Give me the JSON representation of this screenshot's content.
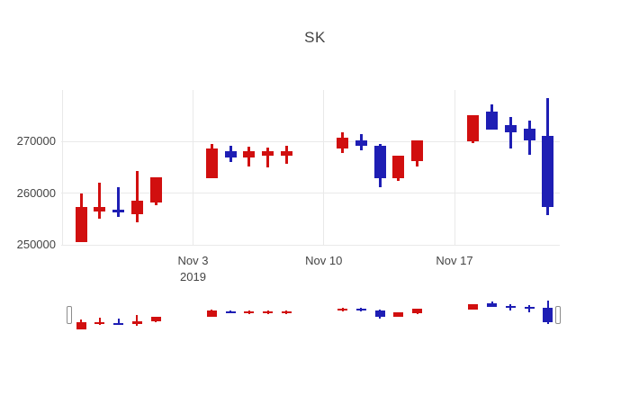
{
  "title": "SK",
  "colors": {
    "up": "#d10f0f",
    "down": "#1e1eb4",
    "grid": "#e9e9e9",
    "text": "#444444",
    "background": "#ffffff",
    "handle_border": "#8c8c8c"
  },
  "y_axis": {
    "tick_labels": [
      "250000",
      "260000",
      "270000"
    ],
    "tick_values": [
      250000,
      260000,
      270000
    ]
  },
  "x_axis": {
    "ticks": [
      {
        "label": "Nov 3",
        "sublabel": "2019",
        "date": "2019-11-03"
      },
      {
        "label": "Nov 10",
        "sublabel": "",
        "date": "2019-11-10"
      },
      {
        "label": "Nov 17",
        "sublabel": "",
        "date": "2019-11-17"
      }
    ]
  },
  "rangeslider": {
    "visible": true
  },
  "chart_data": {
    "type": "candlestick",
    "title": "SK",
    "increasing_color": "red",
    "decreasing_color": "blue",
    "grid": true,
    "ylim": [
      250000,
      280000
    ],
    "x": [
      "2019-10-28",
      "2019-10-29",
      "2019-10-30",
      "2019-10-31",
      "2019-11-01",
      "2019-11-04",
      "2019-11-05",
      "2019-11-06",
      "2019-11-07",
      "2019-11-08",
      "2019-11-11",
      "2019-11-12",
      "2019-11-13",
      "2019-11-14",
      "2019-11-15",
      "2019-11-18",
      "2019-11-19",
      "2019-11-20",
      "2019-11-21",
      "2019-11-22"
    ],
    "open": [
      250600,
      256500,
      256800,
      256000,
      258200,
      262900,
      268100,
      266900,
      267200,
      267300,
      268600,
      270300,
      269200,
      262900,
      266300,
      270100,
      275800,
      273200,
      272600,
      271200
    ],
    "high": [
      259900,
      262000,
      261200,
      264300,
      263100,
      269500,
      269200,
      269000,
      268900,
      269200,
      271800,
      271500,
      269600,
      267200,
      270200,
      275200,
      277200,
      274700,
      274000,
      278400
    ],
    "low": [
      250600,
      255100,
      255400,
      254400,
      257600,
      262900,
      266000,
      265200,
      265000,
      265700,
      267800,
      268300,
      261200,
      262400,
      265200,
      269800,
      272400,
      268600,
      267500,
      255700
    ],
    "close": [
      257300,
      257400,
      256200,
      258500,
      263100,
      268600,
      266900,
      268100,
      268100,
      268200,
      270700,
      269200,
      262900,
      267200,
      270200,
      275200,
      272400,
      271800,
      270300,
      257400
    ]
  }
}
